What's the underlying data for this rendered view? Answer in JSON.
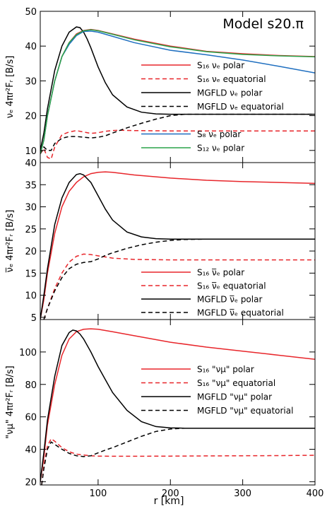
{
  "figure": {
    "model_label": "Model s20.π"
  },
  "colors": {
    "s16": "#e8262b",
    "mgfld": "#000000",
    "s8": "#1f6fc0",
    "s12": "#2aa34a"
  },
  "chart_data": [
    {
      "type": "line",
      "ylabel": "νₑ 4πr²Fᵣ [B/s]",
      "xlim": [
        20,
        400
      ],
      "ylim": [
        6.5,
        50
      ],
      "yticks": [
        10,
        20,
        30,
        40,
        50
      ],
      "series": [
        {
          "name": "S₁₆ νₑ polar",
          "color": "#e8262b",
          "dash": false,
          "x": [
            20,
            25,
            30,
            40,
            50,
            60,
            70,
            80,
            90,
            100,
            120,
            150,
            200,
            250,
            300,
            350,
            400
          ],
          "y": [
            9,
            13,
            20,
            30,
            37,
            41,
            43.5,
            44.5,
            44.8,
            44.5,
            43.5,
            42,
            40,
            38.5,
            37.8,
            37.3,
            37
          ]
        },
        {
          "name": "S₁₆ νₑ equatorial",
          "color": "#e8262b",
          "dash": true,
          "x": [
            20,
            25,
            30,
            35,
            40,
            50,
            60,
            70,
            80,
            90,
            100,
            110,
            120,
            130,
            150,
            200,
            250,
            300,
            350,
            400
          ],
          "y": [
            9,
            10.5,
            8,
            7.5,
            11,
            14.5,
            15.3,
            15.7,
            15.3,
            14.9,
            15.1,
            15.5,
            15.7,
            15.8,
            15.7,
            15.6,
            15.6,
            15.6,
            15.6,
            15.6
          ]
        },
        {
          "name": "MGFLD νₑ polar",
          "color": "#000000",
          "dash": false,
          "x": [
            20,
            25,
            30,
            40,
            50,
            60,
            70,
            75,
            80,
            85,
            90,
            100,
            110,
            120,
            140,
            160,
            180,
            200,
            220,
            250,
            300,
            350,
            400
          ],
          "y": [
            10,
            15,
            22,
            33,
            40,
            44,
            45.5,
            45.3,
            44,
            42,
            39.5,
            34,
            29.5,
            26,
            22.5,
            21,
            20.5,
            20.4,
            20.4,
            20.4,
            20.4,
            20.4,
            20.4
          ]
        },
        {
          "name": "MGFLD νₑ equatorial",
          "color": "#000000",
          "dash": true,
          "x": [
            20,
            25,
            30,
            35,
            40,
            50,
            60,
            70,
            80,
            90,
            100,
            110,
            120,
            140,
            160,
            180,
            200,
            220,
            250,
            300,
            350,
            400
          ],
          "y": [
            9,
            11,
            10,
            10,
            12,
            13.5,
            14,
            14,
            13.8,
            13.6,
            13.8,
            14.2,
            15,
            16.5,
            17.8,
            19,
            20,
            20.4,
            20.4,
            20.4,
            20.4,
            20.4
          ]
        },
        {
          "name": "S₈ νₑ polar",
          "color": "#1f6fc0",
          "dash": false,
          "x": [
            20,
            25,
            30,
            40,
            50,
            60,
            70,
            80,
            90,
            100,
            120,
            150,
            200,
            250,
            300,
            350,
            400
          ],
          "y": [
            9,
            13,
            20,
            30,
            37,
            40.5,
            43,
            44.2,
            44.3,
            44,
            42.8,
            41,
            38.8,
            37.5,
            36,
            34.2,
            32.3
          ]
        },
        {
          "name": "S₁₂ νₑ polar",
          "color": "#2aa34a",
          "dash": false,
          "x": [
            20,
            25,
            30,
            40,
            50,
            60,
            70,
            80,
            90,
            100,
            120,
            150,
            200,
            250,
            300,
            350,
            400
          ],
          "y": [
            9,
            13,
            20,
            30,
            37,
            41,
            43.3,
            44.4,
            44.7,
            44.4,
            43.4,
            41.8,
            39.8,
            38.4,
            37.6,
            37.2,
            36.9
          ]
        }
      ],
      "legend": [
        "S₁₆ νₑ polar",
        "S₁₆ νₑ equatorial",
        "MGFLD νₑ polar",
        "MGFLD νₑ equatorial",
        "S₈ νₑ polar",
        "S₁₂ νₑ polar"
      ]
    },
    {
      "type": "line",
      "ylabel": "ν̅ₑ 4πr²Fᵣ [B/s]",
      "xlim": [
        20,
        400
      ],
      "ylim": [
        4.5,
        40
      ],
      "yticks": [
        5,
        10,
        15,
        20,
        25,
        30,
        35,
        40
      ],
      "series": [
        {
          "name": "S₁₆ ν̅ₑ polar",
          "color": "#e8262b",
          "dash": false,
          "x": [
            20,
            25,
            30,
            40,
            50,
            60,
            70,
            80,
            90,
            100,
            110,
            120,
            150,
            200,
            250,
            300,
            350,
            400
          ],
          "y": [
            4.5,
            9,
            15,
            24,
            30,
            33.5,
            35.5,
            36.8,
            37.5,
            37.8,
            37.9,
            37.8,
            37.2,
            36.5,
            36,
            35.7,
            35.5,
            35.3
          ]
        },
        {
          "name": "S₁₆ ν̅ₑ equatorial",
          "color": "#e8262b",
          "dash": true,
          "x": [
            25,
            30,
            40,
            50,
            60,
            70,
            80,
            90,
            100,
            120,
            150,
            200,
            250,
            300,
            350,
            400
          ],
          "y": [
            4.5,
            7,
            11.5,
            15,
            17.5,
            18.8,
            19.3,
            19.2,
            18.9,
            18.4,
            18.1,
            18,
            18,
            18,
            18,
            18
          ]
        },
        {
          "name": "MGFLD ν̅ₑ polar",
          "color": "#000000",
          "dash": false,
          "x": [
            20,
            25,
            30,
            40,
            50,
            60,
            70,
            75,
            80,
            90,
            100,
            110,
            120,
            140,
            160,
            180,
            200,
            220,
            250,
            300,
            350,
            400
          ],
          "y": [
            4.5,
            10,
            16,
            26,
            32,
            35.5,
            37.3,
            37.5,
            37.2,
            35.5,
            32.5,
            29.5,
            27,
            24.3,
            23.2,
            22.8,
            22.7,
            22.7,
            22.7,
            22.7,
            22.7,
            22.7
          ]
        },
        {
          "name": "MGFLD ν̅ₑ equatorial",
          "color": "#000000",
          "dash": true,
          "x": [
            25,
            30,
            40,
            50,
            60,
            70,
            80,
            90,
            100,
            110,
            120,
            140,
            160,
            180,
            200,
            220,
            250,
            300,
            350,
            400
          ],
          "y": [
            4.5,
            7,
            11,
            14,
            16,
            17,
            17.4,
            17.6,
            18.2,
            19,
            19.6,
            20.6,
            21.4,
            22,
            22.4,
            22.6,
            22.7,
            22.7,
            22.7,
            22.7
          ]
        }
      ],
      "legend": [
        "S₁₆ ν̅ₑ polar",
        "S₁₆ ν̅ₑ equatorial",
        "MGFLD ν̅ₑ polar",
        "MGFLD ν̅ₑ equatorial"
      ]
    },
    {
      "type": "line",
      "ylabel": "\"νμ\" 4πr²Fᵣ [B/s]",
      "xlabel": "r [km]",
      "xlim": [
        20,
        400
      ],
      "ylim": [
        18,
        120
      ],
      "yticks": [
        20,
        40,
        60,
        80,
        100
      ],
      "xticks": [
        100,
        200,
        300,
        400
      ],
      "series": [
        {
          "name": "S₁₆ \"νμ\" polar",
          "color": "#e8262b",
          "dash": false,
          "x": [
            20,
            25,
            30,
            40,
            50,
            60,
            70,
            80,
            90,
            100,
            120,
            150,
            200,
            250,
            300,
            350,
            400
          ],
          "y": [
            20,
            35,
            55,
            80,
            98,
            108,
            112.5,
            114,
            114.3,
            114,
            112.5,
            110,
            106,
            103,
            100.5,
            98,
            95.5
          ]
        },
        {
          "name": "S₁₆ \"νμ\" equatorial",
          "color": "#e8262b",
          "dash": true,
          "x": [
            22,
            25,
            30,
            35,
            40,
            50,
            60,
            70,
            80,
            90,
            100,
            120,
            150,
            200,
            250,
            300,
            350,
            400
          ],
          "y": [
            18,
            30,
            42,
            46.5,
            45,
            41,
            38.5,
            37,
            36.5,
            36,
            35.8,
            35.7,
            35.7,
            35.8,
            35.9,
            36,
            36.1,
            36.3
          ]
        },
        {
          "name": "MGFLD \"νμ\" polar",
          "color": "#000000",
          "dash": false,
          "x": [
            20,
            25,
            30,
            40,
            50,
            60,
            65,
            70,
            75,
            80,
            90,
            100,
            110,
            120,
            140,
            160,
            180,
            200,
            220,
            250,
            300,
            350,
            400
          ],
          "y": [
            20,
            38,
            58,
            85,
            104,
            112,
            113.5,
            113,
            111,
            108,
            100,
            91,
            83,
            75,
            64,
            57,
            54,
            53.2,
            53,
            53,
            53,
            53,
            53
          ]
        },
        {
          "name": "MGFLD \"νμ\" equatorial",
          "color": "#000000",
          "dash": true,
          "x": [
            22,
            25,
            30,
            35,
            40,
            50,
            60,
            70,
            80,
            90,
            100,
            110,
            120,
            140,
            160,
            180,
            200,
            220,
            250,
            300,
            350,
            400
          ],
          "y": [
            18,
            28,
            40,
            44.5,
            43,
            40,
            37.5,
            36,
            35.5,
            36,
            37.8,
            39.5,
            41,
            44.5,
            48,
            51,
            52.5,
            53,
            53,
            53,
            53,
            53
          ]
        }
      ],
      "legend": [
        "S₁₆ \"νμ\" polar",
        "S₁₆ \"νμ\" equatorial",
        "MGFLD \"νμ\" polar",
        "MGFLD \"νμ\" equatorial"
      ]
    }
  ]
}
